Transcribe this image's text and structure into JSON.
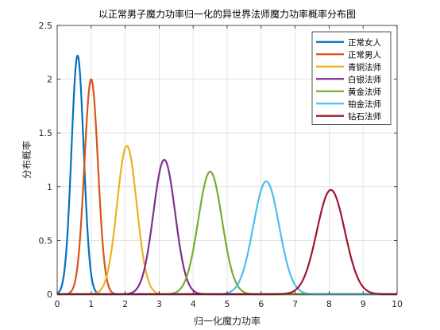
{
  "chart_data": {
    "type": "line",
    "title": "以正常男子魔力功率归一化的异世界法师魔力功率概率分布图",
    "xlabel": "归一化魔力功率",
    "ylabel": "分布概率",
    "xlim": [
      0,
      10
    ],
    "ylim": [
      0,
      2.5
    ],
    "x_ticks": [
      "0",
      "1",
      "2",
      "3",
      "4",
      "5",
      "6",
      "7",
      "8",
      "9",
      "10"
    ],
    "y_ticks": [
      "0",
      "0.5",
      "1",
      "1.5",
      "2",
      "2.5"
    ],
    "grid": true,
    "legend_position": "top-right",
    "series": [
      {
        "name": "正常女人",
        "color": "#0072BD",
        "peak_x": 0.6,
        "peak_y": 2.22
      },
      {
        "name": "正常男人",
        "color": "#D95319",
        "peak_x": 1.0,
        "peak_y": 2.0
      },
      {
        "name": "青铜法师",
        "color": "#EDB120",
        "peak_x": 2.05,
        "peak_y": 1.38
      },
      {
        "name": "白银法师",
        "color": "#7E2F8E",
        "peak_x": 3.15,
        "peak_y": 1.25
      },
      {
        "name": "黄金法师",
        "color": "#77AC30",
        "peak_x": 4.5,
        "peak_y": 1.14
      },
      {
        "name": "铂金法师",
        "color": "#4DBEEE",
        "peak_x": 6.15,
        "peak_y": 1.05
      },
      {
        "name": "钻石法师",
        "color": "#A2142F",
        "peak_x": 8.05,
        "peak_y": 0.97
      }
    ]
  }
}
